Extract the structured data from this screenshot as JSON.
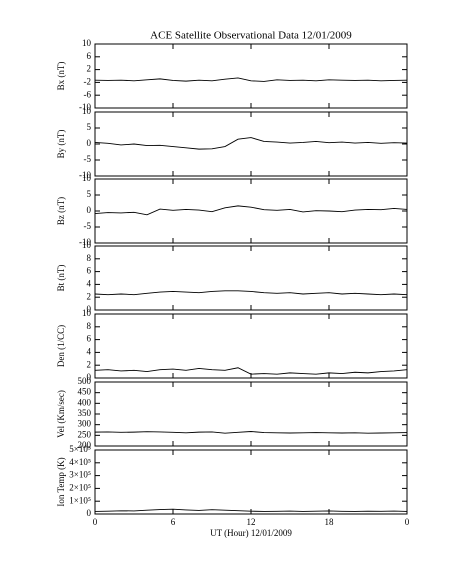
{
  "chart_data": [
    {
      "type": "line",
      "title": "ACE Satellite Observational Data   12/01/2009",
      "y_label": "Bx (nT)",
      "color": "#000000",
      "xlim": [
        0,
        24
      ],
      "xticks": [
        0,
        6,
        12,
        18,
        {
          "value": 24,
          "label": "0"
        }
      ],
      "ylim": [
        -10,
        10
      ],
      "yticks": [
        -10,
        -6,
        -2,
        2,
        6,
        10
      ],
      "x": [
        0,
        1,
        2,
        3,
        4,
        5,
        6,
        7,
        8,
        9,
        10,
        11,
        12,
        13,
        14,
        15,
        16,
        17,
        18,
        19,
        20,
        21,
        22,
        23,
        24
      ],
      "values": [
        -1.3,
        -1.4,
        -1.3,
        -1.5,
        -1.2,
        -0.9,
        -1.4,
        -1.6,
        -1.3,
        -1.5,
        -1.0,
        -0.6,
        -1.5,
        -1.7,
        -1.2,
        -1.4,
        -1.3,
        -1.5,
        -1.2,
        -1.3,
        -1.4,
        -1.3,
        -1.5,
        -1.4,
        -1.3
      ]
    },
    {
      "type": "line",
      "y_label": "By (nT)",
      "color": "#000000",
      "xlim": [
        0,
        24
      ],
      "xticks": [
        0,
        6,
        12,
        18,
        {
          "value": 24,
          "label": "0"
        }
      ],
      "ylim": [
        -10,
        10
      ],
      "yticks": [
        -10,
        -5,
        0,
        5,
        10
      ],
      "x": [
        0,
        1,
        2,
        3,
        4,
        5,
        6,
        7,
        8,
        9,
        10,
        11,
        12,
        13,
        14,
        15,
        16,
        17,
        18,
        19,
        20,
        21,
        22,
        23,
        24
      ],
      "values": [
        0.5,
        0.2,
        -0.3,
        0,
        -0.5,
        -0.4,
        -0.8,
        -1.2,
        -1.6,
        -1.5,
        -0.8,
        1.5,
        2.0,
        0.8,
        0.6,
        0.3,
        0.5,
        0.8,
        0.4,
        0.6,
        0.3,
        0.5,
        0.2,
        0.4,
        0.3
      ]
    },
    {
      "type": "line",
      "y_label": "Bz (nT)",
      "color": "#000000",
      "xlim": [
        0,
        24
      ],
      "xticks": [
        0,
        6,
        12,
        18,
        {
          "value": 24,
          "label": "0"
        }
      ],
      "ylim": [
        -10,
        10
      ],
      "yticks": [
        -10,
        -5,
        0,
        5,
        10
      ],
      "x": [
        0,
        1,
        2,
        3,
        4,
        5,
        6,
        7,
        8,
        9,
        10,
        11,
        12,
        13,
        14,
        15,
        16,
        17,
        18,
        19,
        20,
        21,
        22,
        23,
        24
      ],
      "values": [
        -0.8,
        -0.5,
        -0.6,
        -0.4,
        -1.2,
        0.6,
        0.2,
        0.5,
        0.3,
        -0.2,
        1.0,
        1.6,
        1.2,
        0.4,
        0.2,
        0.5,
        -0.3,
        0.1,
        0.0,
        -0.2,
        0.3,
        0.5,
        0.4,
        0.8,
        0.5
      ]
    },
    {
      "type": "line",
      "y_label": "Bt (nT)",
      "color": "#000000",
      "xlim": [
        0,
        24
      ],
      "xticks": [
        0,
        6,
        12,
        18,
        {
          "value": 24,
          "label": "0"
        }
      ],
      "ylim": [
        0,
        10
      ],
      "yticks": [
        0,
        2,
        4,
        6,
        8,
        10
      ],
      "x": [
        0,
        1,
        2,
        3,
        4,
        5,
        6,
        7,
        8,
        9,
        10,
        11,
        12,
        13,
        14,
        15,
        16,
        17,
        18,
        19,
        20,
        21,
        22,
        23,
        24
      ],
      "values": [
        2.5,
        2.4,
        2.5,
        2.4,
        2.6,
        2.8,
        2.9,
        2.8,
        2.7,
        2.9,
        3.0,
        3.0,
        2.9,
        2.7,
        2.6,
        2.7,
        2.5,
        2.6,
        2.7,
        2.5,
        2.6,
        2.5,
        2.4,
        2.5,
        2.4
      ]
    },
    {
      "type": "line",
      "y_label": "Den (1/CC)",
      "color": "#000000",
      "xlim": [
        0,
        24
      ],
      "xticks": [
        0,
        6,
        12,
        18,
        {
          "value": 24,
          "label": "0"
        }
      ],
      "ylim": [
        0,
        10
      ],
      "yticks": [
        0,
        2,
        4,
        6,
        8,
        10
      ],
      "x": [
        0,
        1,
        2,
        3,
        4,
        5,
        6,
        7,
        8,
        9,
        10,
        11,
        12,
        13,
        14,
        15,
        16,
        17,
        18,
        19,
        20,
        21,
        22,
        23,
        24
      ],
      "values": [
        1.2,
        1.3,
        1.1,
        1.2,
        1.0,
        1.3,
        1.4,
        1.2,
        1.5,
        1.3,
        1.2,
        1.6,
        0.6,
        0.7,
        0.6,
        0.8,
        0.7,
        0.6,
        0.8,
        0.7,
        0.9,
        0.8,
        1.0,
        1.1,
        1.3
      ]
    },
    {
      "type": "line",
      "y_label": "Vel (Km/sec)",
      "color": "#000000",
      "xlim": [
        0,
        24
      ],
      "xticks": [
        0,
        6,
        12,
        18,
        {
          "value": 24,
          "label": "0"
        }
      ],
      "ylim": [
        200,
        500
      ],
      "yticks": [
        200,
        250,
        300,
        350,
        400,
        450,
        500
      ],
      "x": [
        0,
        1,
        2,
        3,
        4,
        5,
        6,
        7,
        8,
        9,
        10,
        11,
        12,
        13,
        14,
        15,
        16,
        17,
        18,
        19,
        20,
        21,
        22,
        23,
        24
      ],
      "values": [
        265,
        266,
        264,
        265,
        267,
        266,
        264,
        262,
        265,
        266,
        260,
        264,
        268,
        263,
        262,
        261,
        262,
        263,
        262,
        261,
        262,
        260,
        261,
        262,
        263
      ]
    },
    {
      "type": "line",
      "y_label": "Ion Temp (K)",
      "x_label": "UT (Hour)   12/01/2009",
      "color": "#000000",
      "xlim": [
        0,
        24
      ],
      "xticks": [
        0,
        6,
        12,
        18,
        {
          "value": 24,
          "label": "0"
        }
      ],
      "ylim": [
        0,
        500000
      ],
      "yticks": [
        0,
        {
          "value": 100000,
          "label": "1×10⁵"
        },
        {
          "value": 200000,
          "label": "2×10⁵"
        },
        {
          "value": 300000,
          "label": "3×10⁵"
        },
        {
          "value": 400000,
          "label": "4×10⁵"
        },
        {
          "value": 500000,
          "label": "5×10⁵"
        }
      ],
      "x": [
        0,
        1,
        2,
        3,
        4,
        5,
        6,
        7,
        8,
        9,
        10,
        11,
        12,
        13,
        14,
        15,
        16,
        17,
        18,
        19,
        20,
        21,
        22,
        23,
        24
      ],
      "values": [
        20000,
        22000,
        25000,
        24000,
        30000,
        35000,
        38000,
        32000,
        28000,
        34000,
        30000,
        26000,
        22000,
        20000,
        21000,
        23000,
        20000,
        22000,
        24000,
        21000,
        20000,
        22000,
        21000,
        23000,
        20000
      ]
    }
  ]
}
